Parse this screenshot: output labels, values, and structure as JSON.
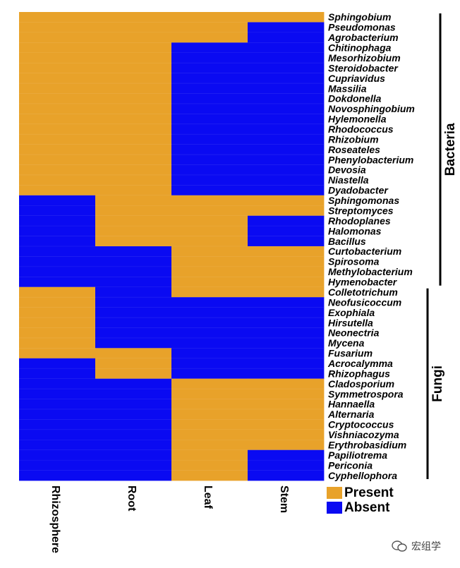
{
  "chart_data": {
    "type": "heatmap",
    "columns": [
      "Rhizosphere",
      "Root",
      "Leaf",
      "Stem"
    ],
    "rows": [
      "Sphingobium",
      "Pseudomonas",
      "Agrobacterium",
      "Chitinophaga",
      "Mesorhizobium",
      "Steroidobacter",
      "Cupriavidus",
      "Massilia",
      "Dokdonella",
      "Novosphingobium",
      "Hylemonella",
      "Rhodococcus",
      "Rhizobium",
      "Roseateles",
      "Phenylobacterium",
      "Devosia",
      "Niastella",
      "Dyadobacter",
      "Sphingomonas",
      "Streptomyces",
      "Rhodoplanes",
      "Halomonas",
      "Bacillus",
      "Curtobacterium",
      "Spirosoma",
      "Methylobacterium",
      "Hymenobacter",
      "Colletotrichum",
      "Neofusicoccum",
      "Exophiala",
      "Hirsutella",
      "Neonectria",
      "Mycena",
      "Fusarium",
      "Acrocalymma",
      "Rhizophagus",
      "Cladosporium",
      "Symmetrospora",
      "Hannaella",
      "Alternaria",
      "Cryptococcus",
      "Vishniacozyma",
      "Erythrobasidium",
      "Papiliotrema",
      "Periconia",
      "Cyphellophora"
    ],
    "values": [
      [
        1,
        1,
        1,
        1
      ],
      [
        1,
        1,
        1,
        0
      ],
      [
        1,
        1,
        1,
        0
      ],
      [
        1,
        1,
        0,
        0
      ],
      [
        1,
        1,
        0,
        0
      ],
      [
        1,
        1,
        0,
        0
      ],
      [
        1,
        1,
        0,
        0
      ],
      [
        1,
        1,
        0,
        0
      ],
      [
        1,
        1,
        0,
        0
      ],
      [
        1,
        1,
        0,
        0
      ],
      [
        1,
        1,
        0,
        0
      ],
      [
        1,
        1,
        0,
        0
      ],
      [
        1,
        1,
        0,
        0
      ],
      [
        1,
        1,
        0,
        0
      ],
      [
        1,
        1,
        0,
        0
      ],
      [
        1,
        1,
        0,
        0
      ],
      [
        1,
        1,
        0,
        0
      ],
      [
        1,
        1,
        0,
        0
      ],
      [
        0,
        1,
        1,
        1
      ],
      [
        0,
        1,
        1,
        1
      ],
      [
        0,
        1,
        1,
        0
      ],
      [
        0,
        1,
        1,
        0
      ],
      [
        0,
        1,
        1,
        0
      ],
      [
        0,
        0,
        1,
        1
      ],
      [
        0,
        0,
        1,
        1
      ],
      [
        0,
        0,
        1,
        1
      ],
      [
        0,
        0,
        1,
        1
      ],
      [
        1,
        0,
        1,
        1
      ],
      [
        1,
        0,
        0,
        0
      ],
      [
        1,
        0,
        0,
        0
      ],
      [
        1,
        0,
        0,
        0
      ],
      [
        1,
        0,
        0,
        0
      ],
      [
        1,
        0,
        0,
        0
      ],
      [
        1,
        1,
        0,
        0
      ],
      [
        0,
        1,
        0,
        0
      ],
      [
        0,
        1,
        0,
        0
      ],
      [
        0,
        0,
        1,
        1
      ],
      [
        0,
        0,
        1,
        1
      ],
      [
        0,
        0,
        1,
        1
      ],
      [
        0,
        0,
        1,
        1
      ],
      [
        0,
        0,
        1,
        1
      ],
      [
        0,
        0,
        1,
        1
      ],
      [
        0,
        0,
        1,
        1
      ],
      [
        0,
        0,
        1,
        0
      ],
      [
        0,
        0,
        1,
        0
      ],
      [
        0,
        0,
        1,
        0
      ]
    ],
    "value_meaning": {
      "1": "Present",
      "0": "Absent"
    },
    "colors": {
      "present": "#e8a22a",
      "absent": "#0a0af2"
    },
    "groups": [
      {
        "label": "Bacteria",
        "first_row": 0,
        "last_row": 26
      },
      {
        "label": "Fungi",
        "first_row": 27,
        "last_row": 45
      }
    ],
    "legend": [
      {
        "label": "Present",
        "color": "#e8a22a"
      },
      {
        "label": "Absent",
        "color": "#0a0af2"
      }
    ]
  },
  "watermark": {
    "text": "宏组学"
  }
}
